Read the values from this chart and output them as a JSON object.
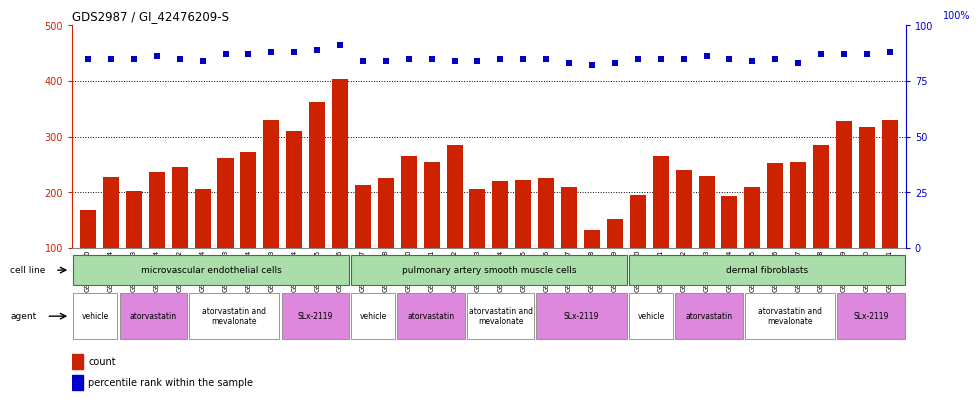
{
  "title": "GDS2987 / GI_42476209-S",
  "samples": [
    "GSM214810",
    "GSM215244",
    "GSM215253",
    "GSM215254",
    "GSM215282",
    "GSM215344",
    "GSM215283",
    "GSM215284",
    "GSM215293",
    "GSM215294",
    "GSM215295",
    "GSM215296",
    "GSM215297",
    "GSM215298",
    "GSM215310",
    "GSM215311",
    "GSM215312",
    "GSM215313",
    "GSM215324",
    "GSM215325",
    "GSM215326",
    "GSM215327",
    "GSM215328",
    "GSM215329",
    "GSM215330",
    "GSM215331",
    "GSM215332",
    "GSM215333",
    "GSM215334",
    "GSM215335",
    "GSM215336",
    "GSM215337",
    "GSM215338",
    "GSM215339",
    "GSM215340",
    "GSM215341"
  ],
  "counts": [
    168,
    228,
    202,
    237,
    245,
    206,
    262,
    272,
    330,
    310,
    362,
    404,
    213,
    226,
    265,
    255,
    285,
    206,
    220,
    222,
    225,
    210,
    133,
    152,
    195,
    265,
    240,
    230,
    193,
    210,
    253,
    255,
    285,
    328,
    318,
    330
  ],
  "percentile": [
    85,
    85,
    85,
    86,
    85,
    84,
    87,
    87,
    88,
    88,
    89,
    91,
    84,
    84,
    85,
    85,
    84,
    84,
    85,
    85,
    85,
    83,
    82,
    83,
    85,
    85,
    85,
    86,
    85,
    84,
    85,
    83,
    87,
    87,
    87,
    88
  ],
  "cell_line_groups": [
    {
      "label": "microvascular endothelial cells",
      "start": 0,
      "end": 11,
      "color": "#aaddaa"
    },
    {
      "label": "pulmonary artery smooth muscle cells",
      "start": 12,
      "end": 23,
      "color": "#aaddaa"
    },
    {
      "label": "dermal fibroblasts",
      "start": 24,
      "end": 35,
      "color": "#aaddaa"
    }
  ],
  "agent_groups": [
    {
      "label": "vehicle",
      "start": 0,
      "end": 1,
      "color": "#ffffff"
    },
    {
      "label": "atorvastatin",
      "start": 2,
      "end": 4,
      "color": "#dd88dd"
    },
    {
      "label": "atorvastatin and\nmevalonate",
      "start": 5,
      "end": 8,
      "color": "#ffffff"
    },
    {
      "label": "SLx-2119",
      "start": 9,
      "end": 11,
      "color": "#dd88dd"
    },
    {
      "label": "vehicle",
      "start": 12,
      "end": 13,
      "color": "#ffffff"
    },
    {
      "label": "atorvastatin",
      "start": 14,
      "end": 16,
      "color": "#dd88dd"
    },
    {
      "label": "atorvastatin and\nmevalonate",
      "start": 17,
      "end": 19,
      "color": "#ffffff"
    },
    {
      "label": "SLx-2119",
      "start": 20,
      "end": 23,
      "color": "#dd88dd"
    },
    {
      "label": "vehicle",
      "start": 24,
      "end": 25,
      "color": "#ffffff"
    },
    {
      "label": "atorvastatin",
      "start": 26,
      "end": 28,
      "color": "#dd88dd"
    },
    {
      "label": "atorvastatin and\nmevalonate",
      "start": 29,
      "end": 32,
      "color": "#ffffff"
    },
    {
      "label": "SLx-2119",
      "start": 33,
      "end": 35,
      "color": "#dd88dd"
    }
  ],
  "bar_color": "#cc2200",
  "dot_color": "#0000cc",
  "ylim_left": [
    100,
    500
  ],
  "ylim_right": [
    0,
    100
  ],
  "yticks_left": [
    100,
    200,
    300,
    400,
    500
  ],
  "yticks_right": [
    0,
    25,
    50,
    75,
    100
  ],
  "grid_lines": [
    200,
    300,
    400
  ],
  "background_color": "#ffffff",
  "cell_line_border_color": "#228822",
  "agent_border_color": "#888888"
}
